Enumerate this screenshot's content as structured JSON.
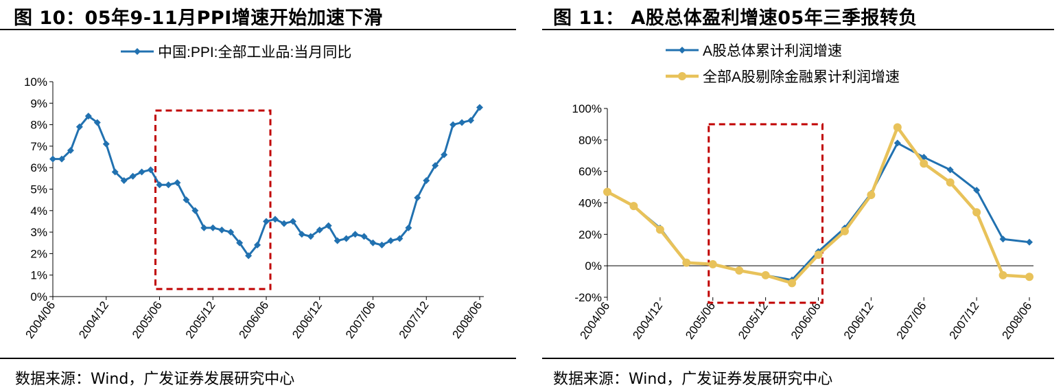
{
  "left": {
    "title": "图  10：05年9-11月PPI增速开始加速下滑",
    "source": "数据来源：Wind，广发证券发展研究中心"
  },
  "right": {
    "title": "图  11：  A股总体盈利增速05年三季报转负",
    "source": "数据来源：Wind，广发证券发展研究中心"
  },
  "colors": {
    "blue": "#2171B0",
    "gold": "#E8C25A",
    "highlight": "#C00000"
  },
  "chart_data": [
    {
      "type": "line",
      "title": "",
      "y_format": "percent",
      "ylim": [
        0,
        10
      ],
      "yticks": [
        0,
        1,
        2,
        3,
        4,
        5,
        6,
        7,
        8,
        9,
        10
      ],
      "x_tick_labels": [
        "2004/06",
        "2004/12",
        "2005/06",
        "2005/12",
        "2006/06",
        "2006/12",
        "2007/06",
        "2007/12",
        "2008/06"
      ],
      "legend": "top-center",
      "series": [
        {
          "name": "中国:PPI:全部工业品:当月同比",
          "color": "#2171B0",
          "values": [
            6.4,
            6.4,
            6.8,
            7.9,
            8.4,
            8.1,
            7.1,
            5.8,
            5.4,
            5.6,
            5.8,
            5.9,
            5.2,
            5.2,
            5.3,
            4.5,
            4.0,
            3.2,
            3.2,
            3.1,
            3.0,
            2.5,
            1.9,
            2.4,
            3.5,
            3.6,
            3.4,
            3.5,
            2.9,
            2.8,
            3.1,
            3.3,
            2.6,
            2.7,
            2.9,
            2.8,
            2.5,
            2.4,
            2.6,
            2.7,
            3.2,
            4.6,
            5.4,
            6.1,
            6.6,
            8.0,
            8.1,
            8.2,
            8.8
          ]
        }
      ],
      "highlight_box": {
        "from": "2005/06",
        "to": "2006/06"
      }
    },
    {
      "type": "line",
      "title": "",
      "y_format": "percent",
      "ylim": [
        -20,
        100
      ],
      "yticks": [
        -20,
        0,
        20,
        40,
        60,
        80,
        100
      ],
      "x_tick_labels": [
        "2004/06",
        "2004/12",
        "2005/06",
        "2005/12",
        "2006/06",
        "2006/12",
        "2007/06",
        "2007/12",
        "2008/06"
      ],
      "legend": "top-left",
      "series": [
        {
          "name": "A股总体累计利润增速",
          "color": "#2171B0",
          "values": [
            47,
            38,
            24,
            2,
            1,
            -3,
            -6,
            -9,
            9,
            24,
            46,
            78,
            69,
            61,
            48,
            17,
            15
          ]
        },
        {
          "name": "全部A股剔除金融累计利润增速",
          "color": "#E8C25A",
          "values": [
            47,
            38,
            23,
            2,
            1,
            -3,
            -6,
            -11,
            7,
            22,
            45,
            88,
            65,
            53,
            34,
            -6,
            -7
          ]
        }
      ],
      "highlight_box": {
        "from": "2005/06",
        "to": "2006/06"
      }
    }
  ]
}
